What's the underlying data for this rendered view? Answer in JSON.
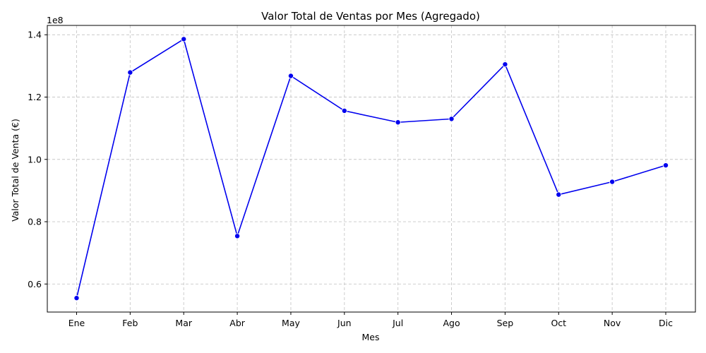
{
  "chart_data": {
    "type": "line",
    "title": "Valor Total de Ventas por Mes (Agregado)",
    "xlabel": "Mes",
    "ylabel": "Valor Total de Venta (€)",
    "offset_label": "1e8",
    "ylim": [
      0.51,
      1.43
    ],
    "yticks": [
      0.6,
      0.8,
      1.0,
      1.2,
      1.4
    ],
    "ytick_labels": [
      "0.6",
      "0.8",
      "1.0",
      "1.2",
      "1.4"
    ],
    "grid": true,
    "categories": [
      "Ene",
      "Feb",
      "Mar",
      "Abr",
      "May",
      "Jun",
      "Jul",
      "Ago",
      "Sep",
      "Oct",
      "Nov",
      "Dic"
    ],
    "series": [
      {
        "name": "Valor Total de Venta",
        "color": "#0000ee",
        "values": [
          0.555,
          1.279,
          1.386,
          0.754,
          1.268,
          1.156,
          1.119,
          1.13,
          1.305,
          0.887,
          0.928,
          0.981
        ]
      }
    ]
  }
}
